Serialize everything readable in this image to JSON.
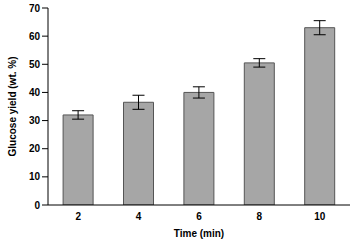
{
  "chart_data": {
    "type": "bar",
    "x_label": "Time (min)",
    "y_label": "Glucose yield (wt. %)",
    "categories": [
      "2",
      "4",
      "6",
      "8",
      "10"
    ],
    "values": [
      32,
      36.5,
      40,
      50.5,
      63
    ],
    "errors": [
      1.5,
      2.5,
      2,
      1.5,
      2.5
    ],
    "color": "#a6a6a6",
    "ylim": [
      0,
      70
    ],
    "yticks": [
      0,
      10,
      20,
      30,
      40,
      50,
      60,
      70
    ],
    "grid": false
  }
}
